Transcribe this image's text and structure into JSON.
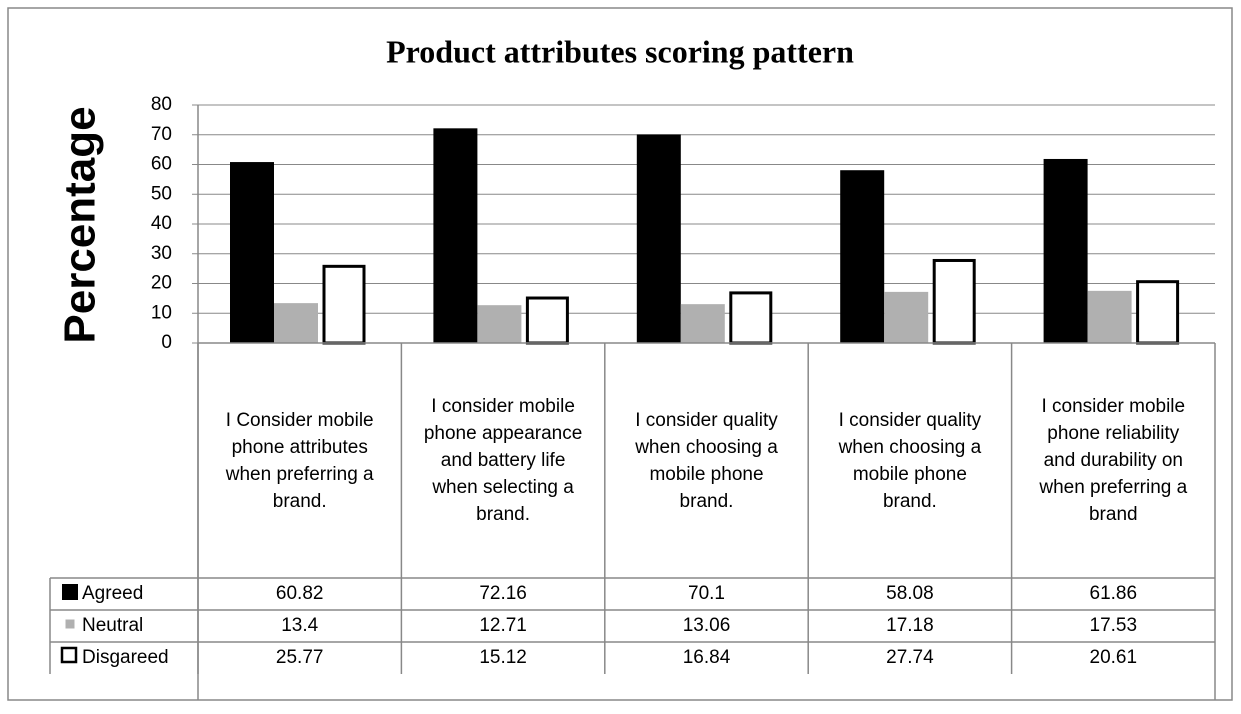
{
  "chart_data": {
    "type": "bar",
    "title": "Product attributes scoring pattern",
    "y_label": "Percentage",
    "categories": [
      "I Consider mobile phone attributes when preferring a brand.",
      "I consider mobile phone appearance and battery life when selecting a brand.",
      "I consider quality when choosing a mobile phone brand.",
      "I consider quality when choosing a mobile phone brand.",
      "I consider mobile phone reliability and durability on when preferring a brand"
    ],
    "series": [
      {
        "name": "Agreed",
        "color": "#000000",
        "values": [
          60.82,
          72.16,
          70.1,
          58.08,
          61.86
        ]
      },
      {
        "name": "Neutral",
        "color": "#b0b0b0",
        "values": [
          13.4,
          12.71,
          13.06,
          17.18,
          17.53
        ]
      },
      {
        "name": "Disgareed",
        "color": "#ffffff",
        "values": [
          25.77,
          15.12,
          16.84,
          27.74,
          20.61
        ]
      }
    ],
    "ylim": [
      0,
      80
    ],
    "yticks": [
      0,
      10,
      20,
      30,
      40,
      50,
      60,
      70,
      80
    ],
    "grid": true
  }
}
